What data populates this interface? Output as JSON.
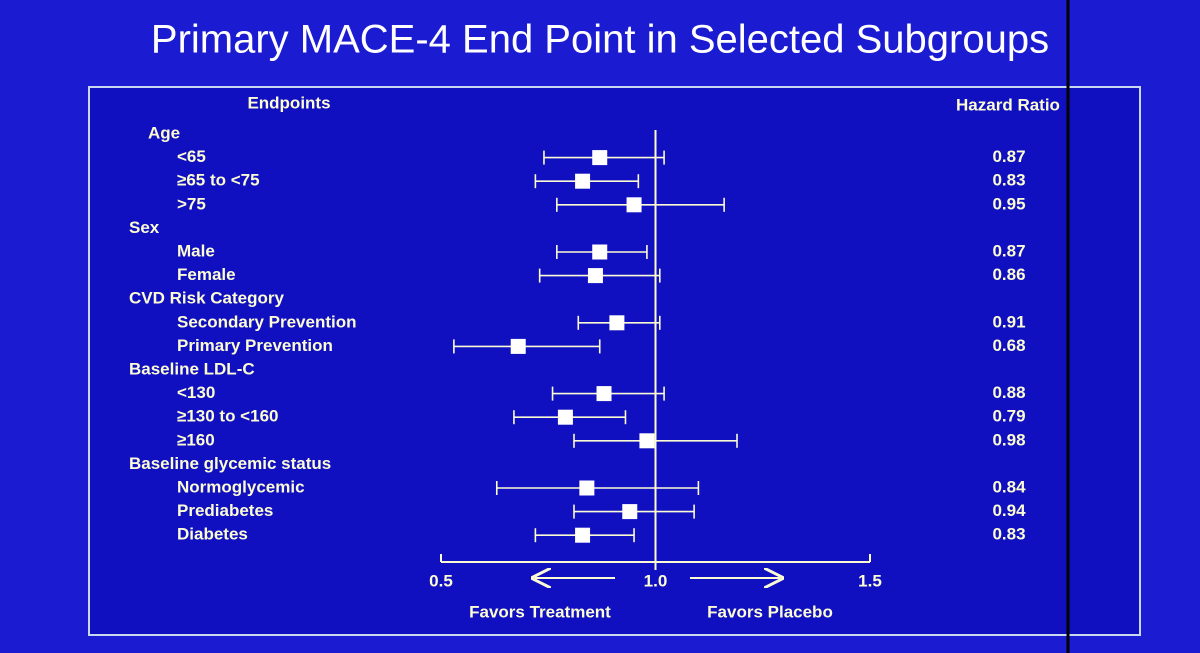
{
  "chart_data": {
    "type": "forest",
    "title": "Primary MACE-4 End Point in Selected Subgroups",
    "label_header": "Endpoints",
    "value_header": "Hazard Ratio",
    "xlim": [
      0.5,
      1.5
    ],
    "xticks": [
      0.5,
      {
        "value": 1,
        "label": "1.0"
      },
      1.5
    ],
    "annotations": [
      "Favors Treatment",
      "Favors Placebo"
    ],
    "groups": [
      {
        "name": "Age",
        "categories": [
          "<65",
          "≥65 to <75",
          ">75"
        ],
        "values": [
          0.87,
          0.83,
          0.95
        ],
        "lower": [
          0.74,
          0.72,
          0.77
        ],
        "upper": [
          1.02,
          0.96,
          1.16
        ]
      },
      {
        "name": "Sex",
        "categories": [
          "Male",
          "Female"
        ],
        "values": [
          0.87,
          0.86
        ],
        "lower": [
          0.77,
          0.73
        ],
        "upper": [
          0.98,
          1.01
        ]
      },
      {
        "name": "CVD Risk Category",
        "categories": [
          "Secondary Prevention",
          "Primary Prevention"
        ],
        "values": [
          0.91,
          0.68
        ],
        "lower": [
          0.82,
          0.53
        ],
        "upper": [
          1.01,
          0.87
        ]
      },
      {
        "name": "Baseline LDL-C",
        "categories": [
          "<130",
          "≥130 to <160",
          "≥160"
        ],
        "values": [
          0.88,
          0.79,
          0.98
        ],
        "lower": [
          0.76,
          0.67,
          0.81
        ],
        "upper": [
          1.02,
          0.93,
          1.19
        ]
      },
      {
        "name": "Baseline glycemic status",
        "categories": [
          "Normoglycemic",
          "Prediabetes",
          "Diabetes"
        ],
        "values": [
          0.84,
          0.94,
          0.83
        ],
        "lower": [
          0.63,
          0.81,
          0.72
        ],
        "upper": [
          1.1,
          1.09,
          0.95
        ]
      }
    ]
  }
}
